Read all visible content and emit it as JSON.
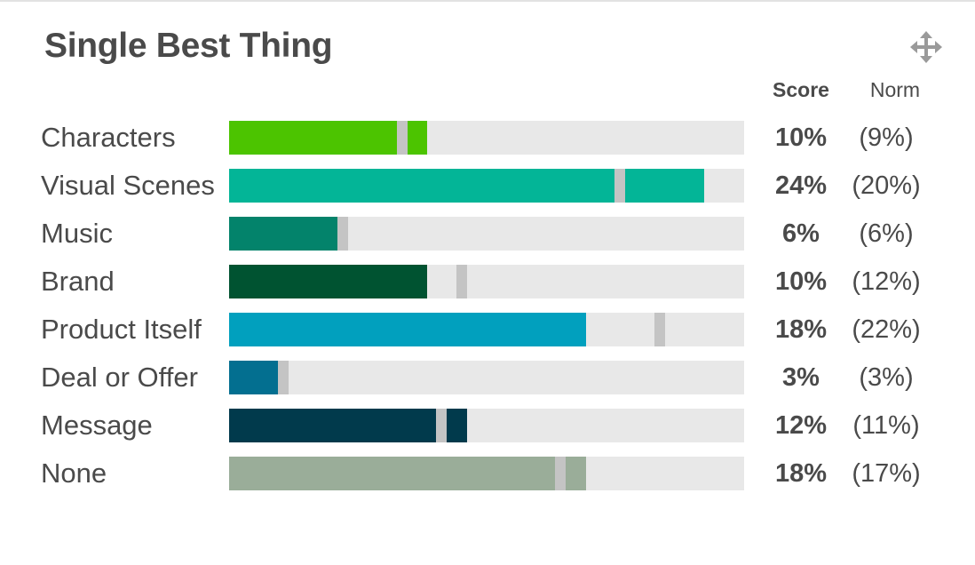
{
  "widget": {
    "title": "Single Best Thing",
    "move_icon": "move-arrows-icon",
    "column_headers": {
      "score": "Score",
      "norm": "Norm"
    }
  },
  "chart_data": {
    "type": "bar",
    "orientation": "horizontal",
    "title": "Single Best Thing",
    "categories": [
      "Characters",
      "Visual Scenes",
      "Music",
      "Brand",
      "Product Itself",
      "Deal or Offer",
      "Message",
      "None"
    ],
    "series": [
      {
        "name": "Score",
        "values": [
          10,
          24,
          6,
          10,
          18,
          3,
          12,
          18
        ]
      },
      {
        "name": "Norm",
        "values": [
          9,
          20,
          6,
          12,
          22,
          3,
          11,
          17
        ]
      }
    ],
    "score_labels": [
      "10%",
      "24%",
      "6%",
      "10%",
      "18%",
      "3%",
      "12%",
      "18%"
    ],
    "norm_labels": [
      "(9%)",
      "(20%)",
      "(6%)",
      "(12%)",
      "(22%)",
      "(3%)",
      "(11%)",
      "(17%)"
    ],
    "colors": [
      "#4cc400",
      "#03b597",
      "#03836b",
      "#005331",
      "#01a0be",
      "#036f90",
      "#013a4c",
      "#9aad99"
    ],
    "norm_marker_color": "#c4c4c4",
    "track_color": "#e8e8e8",
    "xlim": [
      0,
      26
    ]
  }
}
